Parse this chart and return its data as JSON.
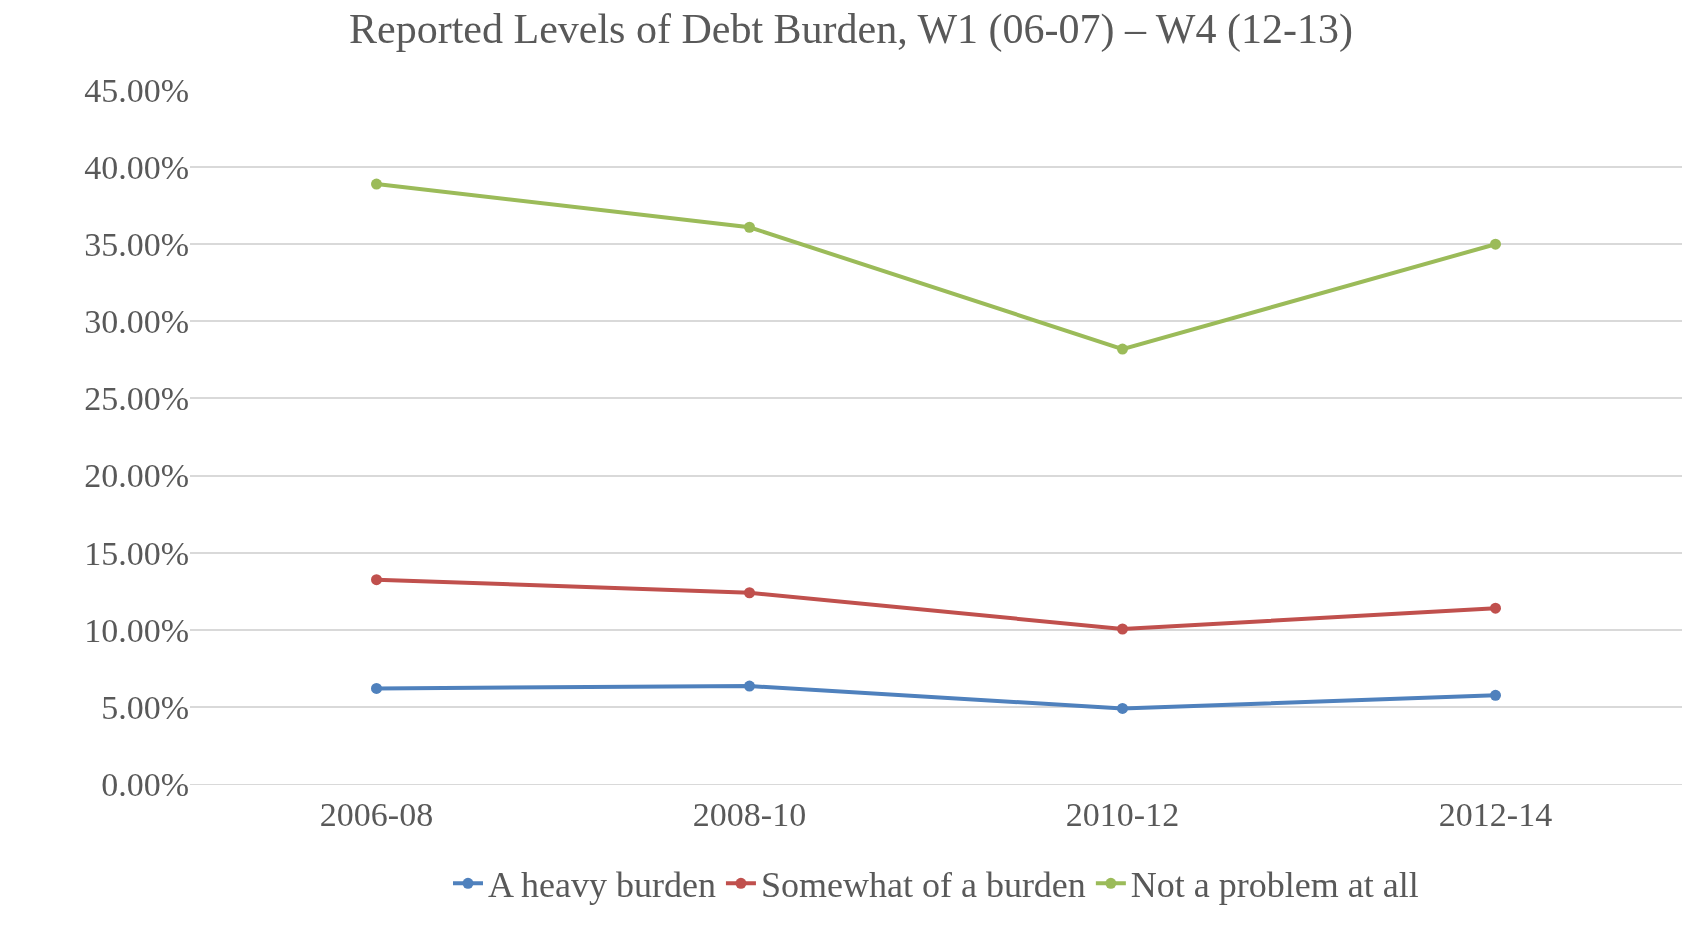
{
  "chart_data": {
    "type": "line",
    "title": "Reported Levels of Debt Burden, W1 (06-07) – W4 (12-13)",
    "categories": [
      "2006-08",
      "2008-10",
      "2010-12",
      "2012-14"
    ],
    "series": [
      {
        "name": "A heavy burden",
        "color": "#4f81bd",
        "values": [
          6.2,
          6.35,
          4.9,
          5.75
        ]
      },
      {
        "name": "Somewhat of a burden",
        "color": "#c0504d",
        "values": [
          13.25,
          12.4,
          10.05,
          11.4
        ]
      },
      {
        "name": "Not a problem at all",
        "color": "#9bbb59",
        "values": [
          38.9,
          36.1,
          28.2,
          35.0
        ]
      }
    ],
    "ylim": [
      0,
      45
    ],
    "yticks": [
      {
        "value": 0,
        "label": "0.00%"
      },
      {
        "value": 5,
        "label": "5.00%"
      },
      {
        "value": 10,
        "label": "10.00%"
      },
      {
        "value": 15,
        "label": "15.00%"
      },
      {
        "value": 20,
        "label": "20.00%"
      },
      {
        "value": 25,
        "label": "25.00%"
      },
      {
        "value": 30,
        "label": "30.00%"
      },
      {
        "value": 35,
        "label": "35.00%"
      },
      {
        "value": 40,
        "label": "40.00%"
      },
      {
        "value": 45,
        "label": "45.00%"
      }
    ],
    "grid": "y",
    "legend": "bottom",
    "marker": "circle",
    "line_style": "solid"
  }
}
